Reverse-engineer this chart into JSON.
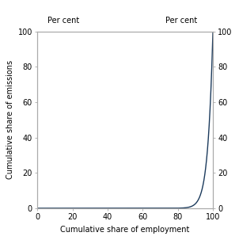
{
  "xlabel": "Cumulative share of employment",
  "ylabel": "Cumulative share of emissions",
  "left_top_label": "Per cent",
  "right_top_label": "Per cent",
  "xlim": [
    0,
    100
  ],
  "ylim": [
    0,
    100
  ],
  "xticks": [
    0,
    20,
    40,
    60,
    80,
    100
  ],
  "yticks": [
    0,
    20,
    40,
    60,
    80,
    100
  ],
  "line_color": "#1b3a5c",
  "line_width": 1.0,
  "background_color": "#ffffff",
  "curve_power": 35
}
